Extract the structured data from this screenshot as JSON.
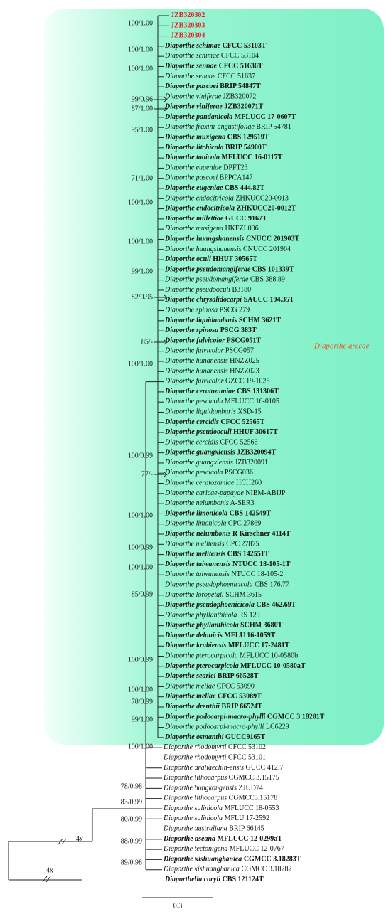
{
  "tree": {
    "clade_label": "Diaporthe arecae",
    "scale_label": "0.3",
    "break_label": "4x",
    "taxa": [
      {
        "strain": "JZB320302",
        "type": true,
        "color": "#e8202a"
      },
      {
        "strain": "JZB320303",
        "type": true,
        "color": "#e8202a"
      },
      {
        "strain": "JZB320304",
        "type": true,
        "color": "#e8202a"
      },
      {
        "species": "Diaporthe schimae",
        "strain": "CFCC 53103T",
        "type": true
      },
      {
        "species": "Diaporthe schimae",
        "strain": "CFCC 53104"
      },
      {
        "species": "Diaporthe sennae",
        "strain": "CFCC 51636T",
        "type": true
      },
      {
        "species": "Diaporthe sennae",
        "strain": "CFCC 51637"
      },
      {
        "species": "Diaporthe pascoei",
        "strain": "BRIP 54847T",
        "type": true
      },
      {
        "species": "Diaporthe viniferae",
        "strain": "JZB320072"
      },
      {
        "species": "Diaporthe viniferae",
        "strain": "JZB320071T",
        "type": true
      },
      {
        "species": "Diaporthe pandanicola",
        "strain": "MFLUCC 17-0607T",
        "type": true
      },
      {
        "species": "Diaporthe fraxini-angustifoliae",
        "strain": "BRIP 54781"
      },
      {
        "species": "Diaporthe muxigena",
        "strain": "CBS 129519T",
        "type": true
      },
      {
        "species": "Diaporthe litchicola",
        "strain": "BRIP 54900T",
        "type": true
      },
      {
        "species": "Diaporthe taoicola",
        "strain": "MFLUCC 16-0117T",
        "type": true
      },
      {
        "species": "Diaporthe eugeniae",
        "strain": "DPFT23"
      },
      {
        "species": "Diaporthe pascoei",
        "strain": "BPPCA147"
      },
      {
        "species": "Diaporthe eugeniae",
        "strain": "CBS 444.82T",
        "type": true
      },
      {
        "species": "Diaporthe endocitricola",
        "strain": "ZHKUCC20-0013"
      },
      {
        "species": "Diaporthe endocitricola",
        "strain": "ZHKUCC20-0012T",
        "type": true
      },
      {
        "species": "Diaporthe millettiae",
        "strain": "GUCC 9167T",
        "type": true
      },
      {
        "species": "Diaporthe musigena",
        "strain": "HKFZL006"
      },
      {
        "species": "Diaporthe huangshanensis",
        "strain": "CNUCC 201903T",
        "type": true
      },
      {
        "species": "Diaporthe huangshanensis",
        "strain": "CNUCC 201904"
      },
      {
        "species": "Diaporthe oculi",
        "strain": "HHUF 30565T",
        "type": true
      },
      {
        "species": "Diaporthe pseudomangiferae",
        "strain": "CBS 101339T",
        "type": true
      },
      {
        "species": "Diaporthe pseudomangiferae",
        "strain": "CBS 388.89"
      },
      {
        "species": "Diaporthe pseudooculi",
        "strain": "B3180"
      },
      {
        "species": "Diaporthe chrysalidocarpi",
        "strain": "SAUCC 194.35T",
        "type": true
      },
      {
        "species": "Diaporthe spinosa",
        "strain": "PSCG 279"
      },
      {
        "species": "Diaporthe liquidambaris",
        "strain": "SCHM 3621T",
        "type": true
      },
      {
        "species": "Diaporthe spinosa",
        "strain": "PSCG 383T",
        "type": true
      },
      {
        "species": "Diaporthe fulvicolor",
        "strain": "PSCG051T",
        "type": true
      },
      {
        "species": "Diaporthe fulvicolor",
        "strain": "PSCG057"
      },
      {
        "species": "Diaporthe hunanensis",
        "strain": "HNZZ025"
      },
      {
        "species": "Diaporthe hunanensis",
        "strain": "HNZZ023"
      },
      {
        "species": "Diaporthe fulvicolor",
        "strain": "GZCC 19-1025"
      },
      {
        "species": "Diaporthe ceratozamiae",
        "strain": "CBS 131306T",
        "type": true
      },
      {
        "species": "Diaporthe pescicola",
        "strain": "MFLUCC 16-0105"
      },
      {
        "species": "Diaporthe liquidambaris",
        "strain": "XSD-15"
      },
      {
        "species": "Diaporthe cercidis",
        "strain": "CFCC 52565T",
        "type": true
      },
      {
        "species": "Diaporthe pseudooculi",
        "strain": "HHUF 30617T",
        "type": true
      },
      {
        "species": "Diaporthe cercidis",
        "strain": "CFCC 52566"
      },
      {
        "species": "Diaporthe guangxiensis",
        "strain": "JZB320094T",
        "type": true
      },
      {
        "species": "Diaporthe guangxiensis",
        "strain": "JZB320091"
      },
      {
        "species": "Diaporthe pescicola",
        "strain": "PSCG036"
      },
      {
        "species": "Diaporthe ceratozamiae",
        "strain": "HCH260"
      },
      {
        "species": "Diaporthe caricae-papayae",
        "strain": "NIBM-ABIJP"
      },
      {
        "species": "Diaporthe nelumbonis",
        "strain": "A-SER3"
      },
      {
        "species": "Diaporthe limonicola",
        "strain": "CBS 142549T",
        "type": true
      },
      {
        "species": "Diaporthe limonicola",
        "strain": "CPC 27869"
      },
      {
        "species": "Diaporthe nelumbonis",
        "strain": "R Kirschner 4114T",
        "type": true
      },
      {
        "species": "Diaporthe melitensis",
        "strain": "CPC 27875"
      },
      {
        "species": "Diaporthe melitensis",
        "strain": "CBS 142551T",
        "type": true
      },
      {
        "species": "Diaporthe taiwanensis",
        "strain": "NTUCC 18-105-1T",
        "type": true
      },
      {
        "species": "Diaporthe taiwanensis",
        "strain": "NTUCC 18-105-2"
      },
      {
        "species": "Diaporthe pseudophoenicicola",
        "strain": "CBS 176.77"
      },
      {
        "species": "Diaporthe loropetali",
        "strain": "SCHM 3615"
      },
      {
        "species": "Diaporthe pseudophoenicicola",
        "strain": "CBS 462.69T",
        "type": true
      },
      {
        "species": "Diaporthe phyllanthicola",
        "strain": "RS 129"
      },
      {
        "species": "Diaporthe phyllanthicola",
        "strain": "SCHM 3680T",
        "type": true
      },
      {
        "species": "Diaporthe delonicis",
        "strain": "MFLU 16-1059T",
        "type": true
      },
      {
        "species": "Diaporthe krabiensis",
        "strain": "MFLUCC 17-2481T",
        "type": true
      },
      {
        "species": "Diaporthe pterocarpicola",
        "strain": "MFLUCC 10-0580b"
      },
      {
        "species": "Diaporthe pterocarpicola",
        "strain": "MFLUCC 10-0580aT",
        "type": true
      },
      {
        "species": "Diaporthe searlei",
        "strain": "BRIP 66528T",
        "type": true
      },
      {
        "species": "Diaporthe meliae",
        "strain": "CFCC 53090"
      },
      {
        "species": "Diaporthe meliae",
        "strain": "CFCC 53089T",
        "type": true
      },
      {
        "species": "Diaporthe drenthii",
        "strain": "BRIP 66524T",
        "type": true
      },
      {
        "species": "Diaporthe podocarpi-macro-phylli",
        "strain": "CGMCC 3.18281T",
        "type": true
      },
      {
        "species": "Diaporthe podocarpi-macro-phylli",
        "strain": "LC6229"
      },
      {
        "species": "Diaporthe osmanthi",
        "strain": "GUCC9165T",
        "type": true
      },
      {
        "species": "Diaporthe rhodomyrti",
        "strain": "CFCC 53102"
      },
      {
        "species": "Diaporthe rhodomyrti",
        "strain": "CFCC 53101"
      },
      {
        "species": "Diaporthe araliaechin-ensis",
        "strain": "GUCC 412.7"
      },
      {
        "species": "Diaporthe lithocarpus",
        "strain": "CGMCC 3.15175"
      },
      {
        "species": "Diaporthe hongkongensis",
        "strain": "ZJUD74"
      },
      {
        "species": "Diaporthe lithocarpus",
        "strain": "CGMCC3.15178"
      },
      {
        "species": "Diaporthe salinicola",
        "strain": "MFLUCC 18-0553"
      },
      {
        "species": "Diaporthe salinicola",
        "strain": "MFLU 17-2592"
      },
      {
        "species": "Diaporthe australiana",
        "strain": "BRIP 66145"
      },
      {
        "species": "Diaporthe aseana",
        "strain": "MFLUCC 12-0299aT",
        "type": true
      },
      {
        "species": "Diaporthe tectonigena",
        "strain": "MFLUCC 12-0767"
      },
      {
        "species": "Diaporthe xishuangbanica",
        "strain": "CGMCC 3.18283T",
        "type": true
      },
      {
        "species": "Diaporthe xishuangbanica",
        "strain": "CGMCC 3.18282"
      },
      {
        "species": "Diaporthella coryli",
        "strain": "CBS 121124T",
        "type": true
      }
    ],
    "supports": [
      "100/1.00",
      "100/1.00",
      "100/1.00",
      "99/0.96",
      "87/1.00",
      "95/1.00",
      "71/1.00",
      "100/1.00",
      "100/1.00",
      "99/1.00",
      "82/0.95",
      "85/-",
      "100/1.00",
      "100/0.99",
      "77/-",
      "100/1.00",
      "100/0.99",
      "100/1.00",
      "85/0.99",
      "100/0.99",
      "100/1.00",
      "78/0.99",
      "99/1.00",
      "100/1.00",
      "78/0.98",
      "83/0.99",
      "80/0.99",
      "88/0.99",
      "89/0.98"
    ]
  }
}
